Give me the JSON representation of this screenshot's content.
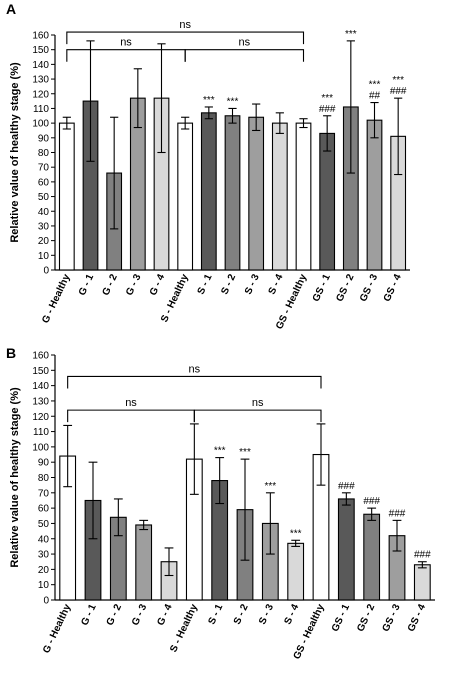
{
  "chart_data": [
    {
      "panel": "A",
      "type": "bar",
      "ylabel": "Relative value of healthy stage (%)",
      "ylim": [
        0,
        160
      ],
      "ytick_step": 10,
      "categories": [
        "G - Healthy",
        "G - 1",
        "G - 2",
        "G - 3",
        "G - 4",
        "S - Healthy",
        "S - 1",
        "S - 2",
        "S - 3",
        "S - 4",
        "GS - Healthy",
        "GS - 1",
        "GS - 2",
        "GS - 3",
        "GS - 4"
      ],
      "values": [
        100,
        115,
        66,
        117,
        117,
        100,
        107,
        105,
        104,
        100,
        100,
        93,
        111,
        102,
        91
      ],
      "errors": [
        4,
        41,
        38,
        20,
        37,
        4,
        4,
        5,
        9,
        7,
        3,
        12,
        45,
        12,
        26
      ],
      "bar_colors": [
        "#ffffff",
        "#595959",
        "#808080",
        "#9e9e9e",
        "#d9d9d9",
        "#ffffff",
        "#595959",
        "#808080",
        "#9e9e9e",
        "#d9d9d9",
        "#ffffff",
        "#595959",
        "#808080",
        "#9e9e9e",
        "#d9d9d9"
      ],
      "annotations": [
        "",
        "",
        "",
        "",
        "",
        "",
        "***",
        "***",
        "",
        "",
        "",
        "***\n###",
        "***",
        "***\n##",
        "***\n###"
      ],
      "brackets": [
        {
          "from": 0,
          "to": 5,
          "label": "ns",
          "level": 150
        },
        {
          "from": 5,
          "to": 10,
          "label": "ns",
          "level": 150
        },
        {
          "from": 0,
          "to": 10,
          "label": "ns",
          "level": 162
        }
      ]
    },
    {
      "panel": "B",
      "type": "bar",
      "ylabel": "Relative value of healthy stage (%)",
      "ylim": [
        0,
        160
      ],
      "ytick_step": 10,
      "categories": [
        "G - Healthy",
        "G - 1",
        "G - 2",
        "G - 3",
        "G - 4",
        "S - Healthy",
        "S - 1",
        "S - 2",
        "S - 3",
        "S - 4",
        "GS - Healthy",
        "GS - 1",
        "GS - 2",
        "GS - 3",
        "GS - 4"
      ],
      "values": [
        94,
        65,
        54,
        49,
        25,
        92,
        78,
        59,
        50,
        37,
        95,
        66,
        56,
        42,
        23
      ],
      "errors": [
        20,
        25,
        12,
        3,
        9,
        23,
        15,
        33,
        20,
        2,
        20,
        4,
        4,
        10,
        2
      ],
      "bar_colors": [
        "#ffffff",
        "#595959",
        "#808080",
        "#9e9e9e",
        "#d9d9d9",
        "#ffffff",
        "#595959",
        "#808080",
        "#9e9e9e",
        "#d9d9d9",
        "#ffffff",
        "#595959",
        "#808080",
        "#9e9e9e",
        "#d9d9d9"
      ],
      "annotations": [
        "",
        "",
        "",
        "",
        "",
        "",
        "***",
        "***",
        "***",
        "***",
        "",
        "###",
        "###",
        "###",
        "###"
      ],
      "brackets": [
        {
          "from": 0,
          "to": 5,
          "label": "ns",
          "level": 124
        },
        {
          "from": 5,
          "to": 10,
          "label": "ns",
          "level": 124
        },
        {
          "from": 0,
          "to": 10,
          "label": "ns",
          "level": 146
        }
      ]
    }
  ]
}
